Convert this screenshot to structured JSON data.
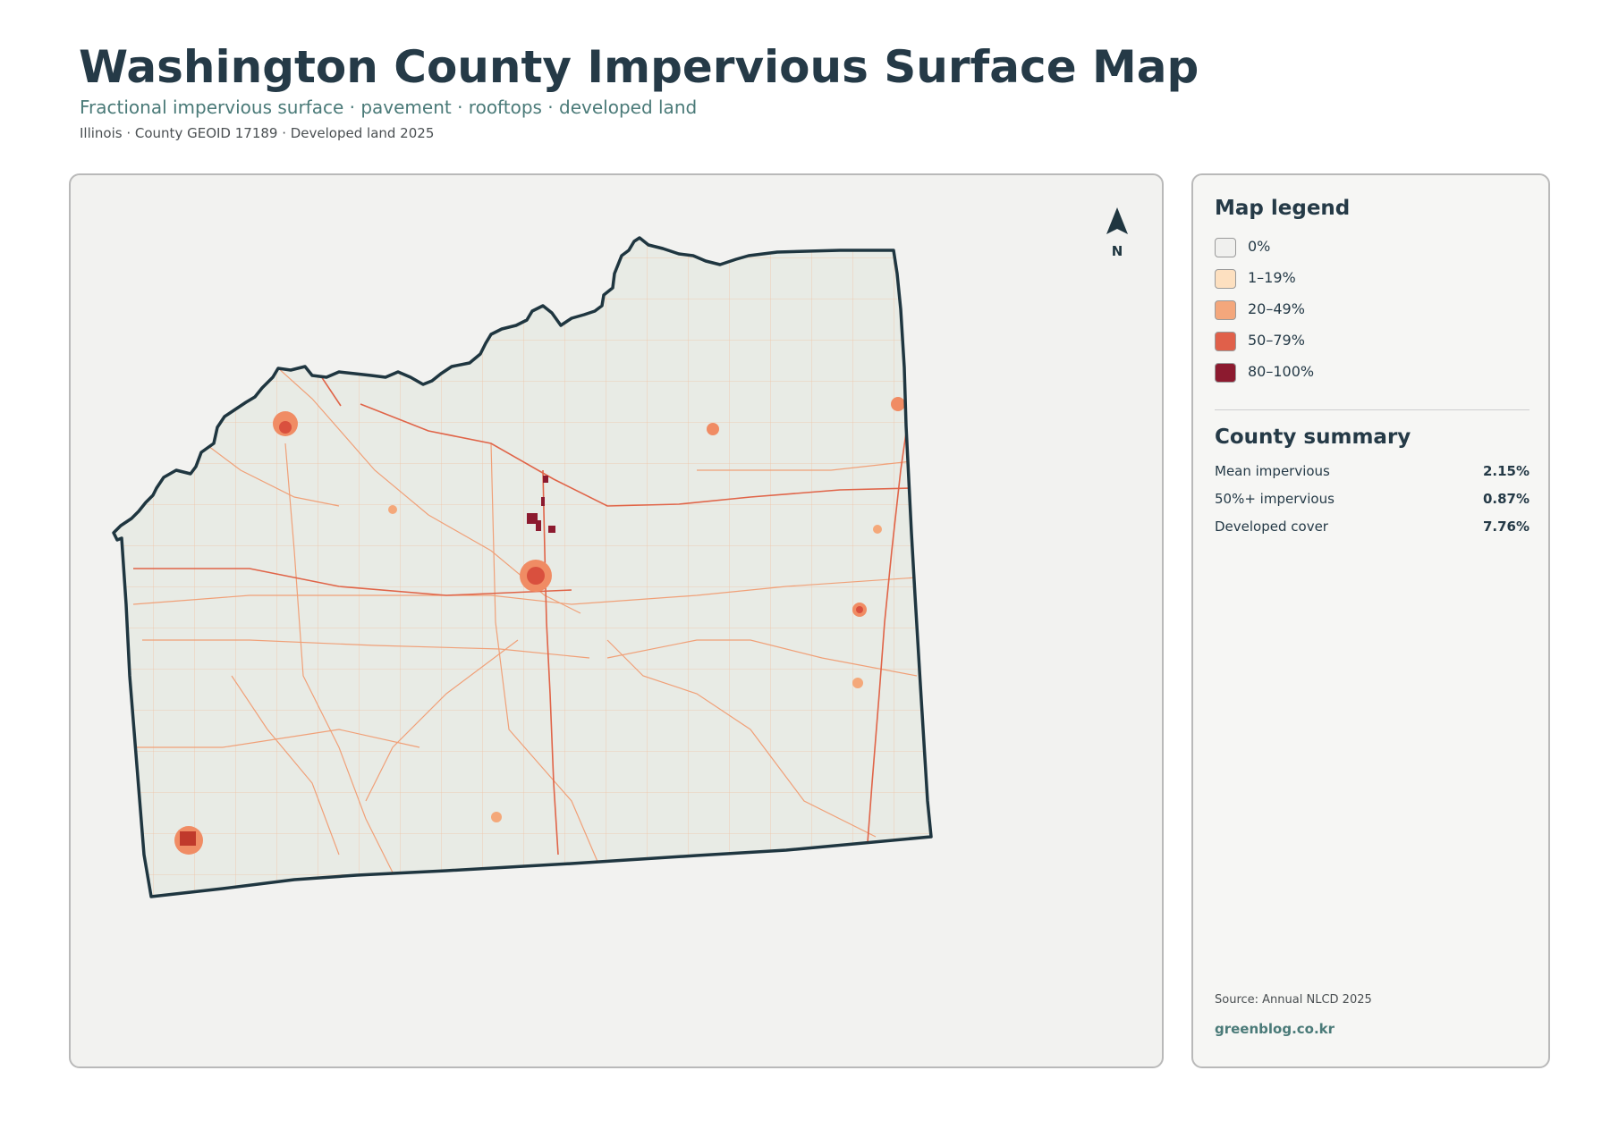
{
  "header": {
    "title": "Washington County Impervious Surface Map",
    "subtitle": "Fractional impervious surface · pavement · rooftops · developed land",
    "meta": "Illinois · County GEOID 17189 · Developed land 2025"
  },
  "map": {
    "north_label": "N",
    "colors": {
      "land": "#e8ebe5",
      "boundary": "#1f3640",
      "road_light": "#f4a87a",
      "road_main": "#e06448",
      "urban_mid": "#f08c64",
      "urban_high": "#d9503e",
      "urban_max": "#8c1a2f"
    }
  },
  "legend": {
    "title": "Map legend",
    "items": [
      {
        "label": "0%",
        "color": "#f0f0ee"
      },
      {
        "label": "1–19%",
        "color": "#fde0c0"
      },
      {
        "label": "20–49%",
        "color": "#f4a77c"
      },
      {
        "label": "50–79%",
        "color": "#e0604a"
      },
      {
        "label": "80–100%",
        "color": "#8c1a2f"
      }
    ]
  },
  "summary": {
    "title": "County summary",
    "stats": [
      {
        "label": "Mean impervious",
        "value": "2.15%"
      },
      {
        "label": "50%+ impervious",
        "value": "0.87%"
      },
      {
        "label": "Developed cover",
        "value": "7.76%"
      }
    ]
  },
  "footer": {
    "source": "Source: Annual NLCD 2025",
    "brand": "greenblog.co.kr"
  }
}
